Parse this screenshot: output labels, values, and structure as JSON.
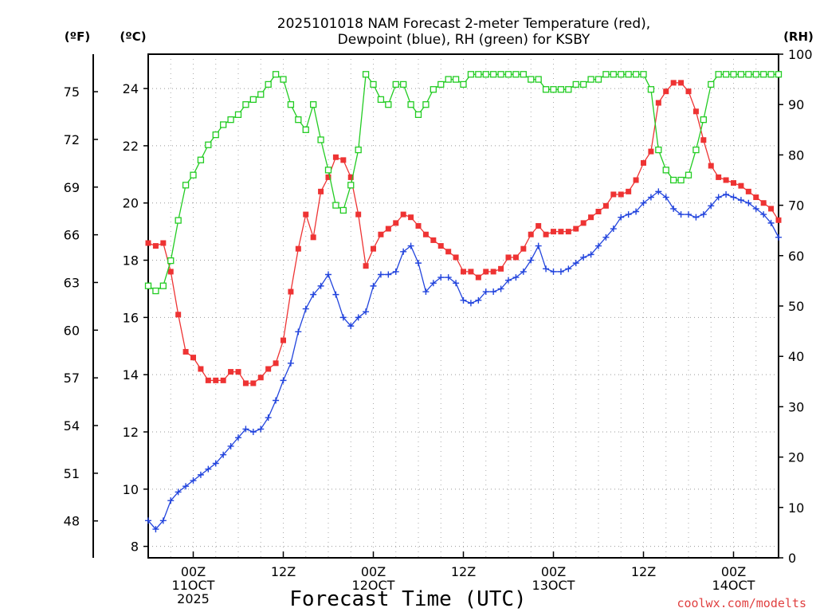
{
  "chart_data": {
    "type": "line",
    "title": [
      "2025101018 NAM Forecast 2-meter Temperature (red),",
      "Dewpoint (blue), RH (green) for KSBY"
    ],
    "xlabel": "Forecast Time (UTC)",
    "credit": "coolwx.com/modelts",
    "units": {
      "fahrenheit": "(ºF)",
      "celsius": "(ºC)",
      "rh": "(RH)"
    },
    "x_range_hours": [
      0,
      84
    ],
    "x_ticks": [
      {
        "hour": 6,
        "lines": [
          "00Z",
          "11OCT",
          "2025"
        ]
      },
      {
        "hour": 18,
        "lines": [
          "12Z"
        ]
      },
      {
        "hour": 30,
        "lines": [
          "00Z",
          "12OCT"
        ]
      },
      {
        "hour": 42,
        "lines": [
          "12Z"
        ]
      },
      {
        "hour": 54,
        "lines": [
          "00Z",
          "13OCT"
        ]
      },
      {
        "hour": 66,
        "lines": [
          "12Z"
        ]
      },
      {
        "hour": 78,
        "lines": [
          "00Z",
          "14OCT"
        ]
      }
    ],
    "celsius_axis": {
      "range": [
        7.6,
        25.2
      ],
      "ticks": [
        "8",
        "10",
        "12",
        "14",
        "16",
        "18",
        "20",
        "22",
        "24"
      ]
    },
    "fahrenheit_axis": {
      "ticks": [
        "48",
        "51",
        "54",
        "57",
        "60",
        "63",
        "66",
        "69",
        "72",
        "75"
      ]
    },
    "rh_axis": {
      "range": [
        0,
        100
      ],
      "ticks": [
        "0",
        "10",
        "20",
        "30",
        "40",
        "50",
        "60",
        "70",
        "80",
        "90",
        "100"
      ]
    },
    "series": [
      {
        "name": "Temperature",
        "unit": "C",
        "color": "#ee3333",
        "marker": "filled-square",
        "values": [
          18.6,
          18.5,
          18.6,
          17.6,
          16.1,
          14.8,
          14.6,
          14.2,
          13.8,
          13.8,
          13.8,
          14.1,
          14.1,
          13.7,
          13.7,
          13.9,
          14.2,
          14.4,
          15.2,
          16.9,
          18.4,
          19.6,
          18.8,
          20.4,
          20.9,
          21.6,
          21.5,
          20.9,
          19.6,
          17.8,
          18.4,
          18.9,
          19.1,
          19.3,
          19.6,
          19.5,
          19.2,
          18.9,
          18.7,
          18.5,
          18.3,
          18.1,
          17.6,
          17.6,
          17.4,
          17.6,
          17.6,
          17.7,
          18.1,
          18.1,
          18.4,
          18.9,
          19.2,
          18.9,
          19.0,
          19.0,
          19.0,
          19.1,
          19.3,
          19.5,
          19.7,
          19.9,
          20.3,
          20.3,
          20.4,
          20.8,
          21.4,
          21.8,
          23.5,
          23.9,
          24.2,
          24.2,
          23.9,
          23.2,
          22.2,
          21.3,
          20.9,
          20.8,
          20.7,
          20.6,
          20.4,
          20.2,
          20.0,
          19.8,
          19.4
        ]
      },
      {
        "name": "Dewpoint",
        "unit": "C",
        "color": "#2244dd",
        "marker": "plus",
        "values": [
          8.9,
          8.6,
          8.9,
          9.6,
          9.9,
          10.1,
          10.3,
          10.5,
          10.7,
          10.9,
          11.2,
          11.5,
          11.8,
          12.1,
          12.0,
          12.1,
          12.5,
          13.1,
          13.8,
          14.4,
          15.5,
          16.3,
          16.8,
          17.1,
          17.5,
          16.8,
          16.0,
          15.7,
          16.0,
          16.2,
          17.1,
          17.5,
          17.5,
          17.6,
          18.3,
          18.5,
          17.9,
          16.9,
          17.2,
          17.4,
          17.4,
          17.2,
          16.6,
          16.5,
          16.6,
          16.9,
          16.9,
          17.0,
          17.3,
          17.4,
          17.6,
          18.0,
          18.5,
          17.7,
          17.6,
          17.6,
          17.7,
          17.9,
          18.1,
          18.2,
          18.5,
          18.8,
          19.1,
          19.5,
          19.6,
          19.7,
          20.0,
          20.2,
          20.4,
          20.2,
          19.8,
          19.6,
          19.6,
          19.5,
          19.6,
          19.9,
          20.2,
          20.3,
          20.2,
          20.1,
          20.0,
          19.8,
          19.6,
          19.3,
          18.8
        ]
      },
      {
        "name": "RH",
        "unit": "%",
        "color": "#22cc22",
        "marker": "open-square",
        "values": [
          54,
          53,
          54,
          59,
          67,
          74,
          76,
          79,
          82,
          84,
          86,
          87,
          88,
          90,
          91,
          92,
          94,
          96,
          95,
          90,
          87,
          85,
          90,
          83,
          77,
          70,
          69,
          74,
          81,
          96,
          94,
          91,
          90,
          94,
          94,
          90,
          88,
          90,
          93,
          94,
          95,
          95,
          94,
          96,
          96,
          96,
          96,
          96,
          96,
          96,
          96,
          95,
          95,
          93,
          93,
          93,
          93,
          94,
          94,
          95,
          95,
          96,
          96,
          96,
          96,
          96,
          96,
          93,
          81,
          77,
          75,
          75,
          76,
          81,
          87,
          94,
          96,
          96,
          96,
          96,
          96,
          96,
          96,
          96,
          96
        ]
      }
    ]
  }
}
